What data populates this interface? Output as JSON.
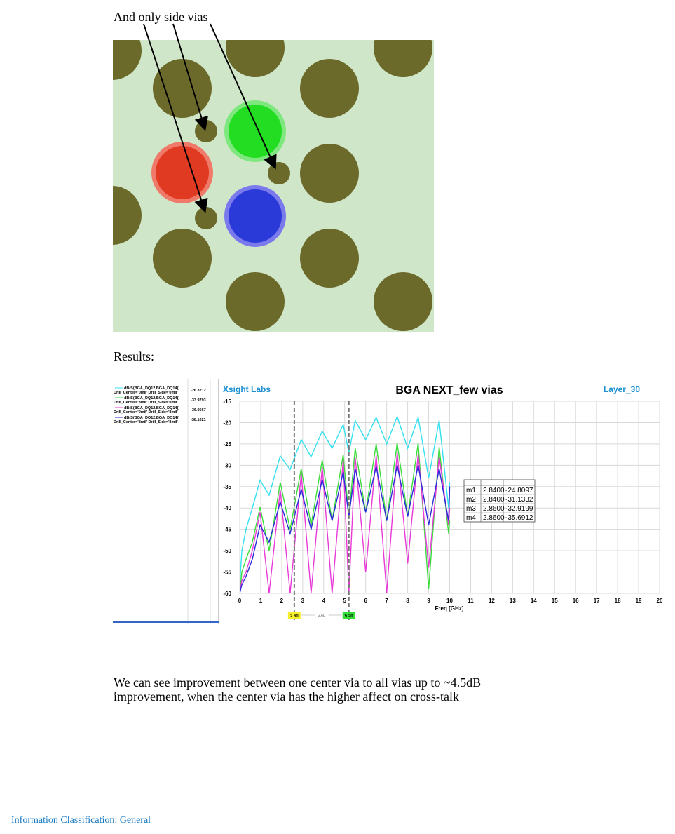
{
  "caption_top": "And only side vias",
  "results_label": "Results:",
  "chart": {
    "type": "line",
    "title": "BGA NEXT_few vias",
    "brand": "Xsight Labs",
    "layer": "Layer_30",
    "xlabel": "Freq [GHz]",
    "xlim": [
      0,
      20
    ],
    "xticks": [
      0,
      1,
      2,
      3,
      4,
      5,
      6,
      7,
      8,
      9,
      10,
      11,
      12,
      13,
      14,
      15,
      16,
      17,
      18,
      19,
      20
    ],
    "ylim": [
      -60,
      -15
    ],
    "yticks": [
      -15,
      -20,
      -25,
      -30,
      -35,
      -40,
      -45,
      -50,
      -55,
      -60
    ],
    "grid": true,
    "x": [
      0,
      0.1,
      0.3,
      0.6,
      0.97,
      1.4,
      1.93,
      2.4,
      2.93,
      3.4,
      3.93,
      4.4,
      4.93,
      5.2,
      5.5,
      6.0,
      6.5,
      7.0,
      7.5,
      8.0,
      8.5,
      9.0,
      9.5,
      9.95,
      10.0
    ],
    "series": [
      {
        "name": "dB(S(BGA_DQ12,BGA_DQ14))",
        "variant": "Drill_Center='0mil' Drill_Side='0mil'",
        "legend_value": "-26.3212",
        "color": "#33e0f0",
        "values": [
          -58,
          -50,
          -45,
          -40,
          -33.5,
          -37,
          -27.8,
          -31,
          -24,
          -28,
          -22,
          -26,
          -20.5,
          -27,
          -19.5,
          -24,
          -18.8,
          -25,
          -18.6,
          -26,
          -18.8,
          -33,
          -19.5,
          -40,
          -34
        ]
      },
      {
        "name": "dB(S(BGA_DQ12,BGA_DQ14))",
        "variant": "Drill_Center='8mil' Drill_Side='0mil'",
        "legend_value": "-33.9793",
        "color": "#3cdc3c",
        "values": [
          -60,
          -55,
          -52,
          -48,
          -39.8,
          -50,
          -34,
          -45,
          -30.8,
          -44,
          -28.8,
          -43,
          -27.5,
          -42,
          -26,
          -41,
          -25,
          -43,
          -24.8,
          -42,
          -24.8,
          -59,
          -25.7,
          -46,
          -43
        ]
      },
      {
        "name": "dB(S(BGA_DQ12,BGA_DQ14))",
        "variant": "Drill_Center='0mil' Drill_Side='8mil'",
        "legend_value": "-36.0567",
        "color": "#e83ad8",
        "values": [
          -60,
          -57,
          -55,
          -50,
          -41,
          -60,
          -35.7,
          -60,
          -32,
          -60,
          -30.4,
          -60,
          -28.8,
          -60,
          -28,
          -55,
          -27.6,
          -60,
          -27,
          -53,
          -27.3,
          -54,
          -28,
          -44,
          -40
        ]
      },
      {
        "name": "dB(S(BGA_DQ12,BGA_DQ14))",
        "variant": "Drill_Center='8mil' Drill_Side='8mil'",
        "legend_value": "-38.1021",
        "color": "#2a2ad8",
        "values": [
          -60,
          -58,
          -56,
          -52,
          -44,
          -48,
          -38.6,
          -46,
          -35.6,
          -45,
          -33.4,
          -43,
          -31.6,
          -42,
          -30.8,
          -41,
          -30.3,
          -43,
          -30,
          -42,
          -30,
          -44,
          -30.8,
          -43,
          -35
        ]
      }
    ],
    "marker_lines": [
      {
        "value": 2.6,
        "label": "2.60"
      },
      {
        "value": 5.2,
        "label": "5.20"
      }
    ],
    "marker_delta": {
      "value": 2.6,
      "label": "2.60"
    },
    "marker_table": [
      [
        "m1",
        "2.8400",
        "-24.8097"
      ],
      [
        "m2",
        "2.8400",
        "-31.1332"
      ],
      [
        "m3",
        "2.8600",
        "-32.9199"
      ],
      [
        "m4",
        "2.8600",
        "-35.6912"
      ]
    ]
  },
  "paragraph": [
    "We can see improvement between one center via to all vias up to ~4.5dB",
    "improvement, when the center via has the higher affect on cross-talk"
  ],
  "footer": "Information Classification: General"
}
